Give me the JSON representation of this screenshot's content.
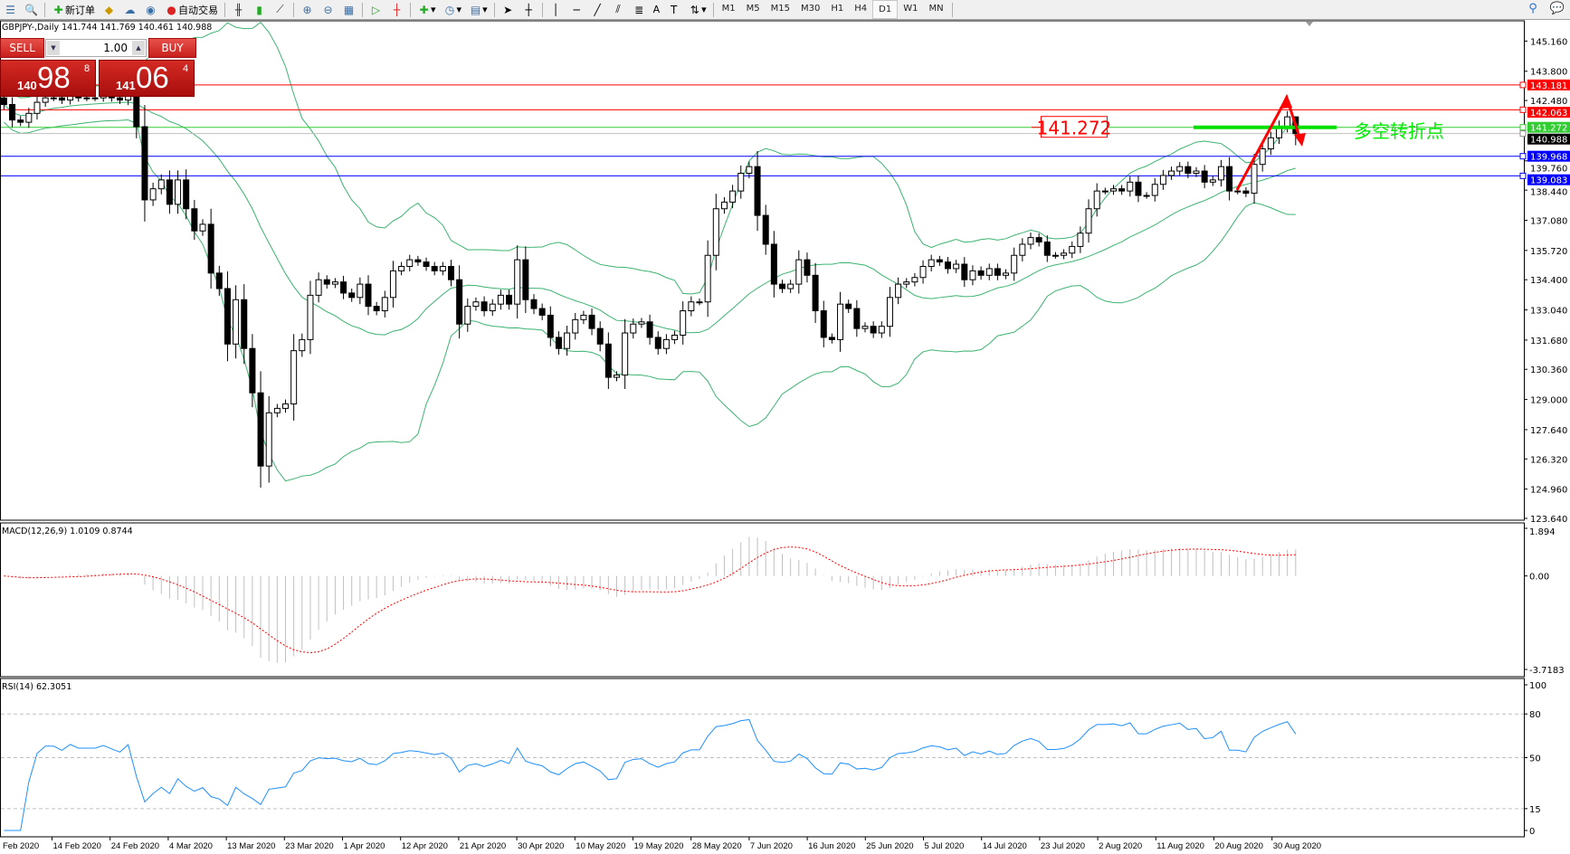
{
  "toolbar": {
    "new_order_label": "新订单",
    "auto_trading_label": "自动交易",
    "timeframes": [
      "M1",
      "M5",
      "M15",
      "M30",
      "H1",
      "H4",
      "D1",
      "W1",
      "MN"
    ],
    "active_timeframe": "D1",
    "text_tool_label": "A"
  },
  "chart": {
    "title": "GBPJPY-,Daily  141.744 141.769 140.461 140.988",
    "symbol": "GBPJPY-",
    "timeframe": "Daily"
  },
  "trade_panel": {
    "sell_label": "SELL",
    "buy_label": "BUY",
    "lot": "1.00",
    "sell_price": {
      "big": "140",
      "main": "98",
      "sup": "8"
    },
    "buy_price": {
      "big": "141",
      "main": "06",
      "sup": "4"
    },
    "color": "#c8201c"
  },
  "price_axis": {
    "ticks": [
      "145.160",
      "143.800",
      "142.480",
      "139.760",
      "138.440",
      "137.080",
      "135.720",
      "134.400",
      "133.040",
      "131.680",
      "130.360",
      "129.000",
      "127.640",
      "126.320",
      "124.960",
      "123.640"
    ],
    "range": [
      123.64,
      145.16
    ]
  },
  "horizontal_lines": [
    {
      "price": 143.181,
      "label": "143.181",
      "color": "#ff0000"
    },
    {
      "price": 142.063,
      "label": "142.063",
      "color": "#ff0000"
    },
    {
      "price": 141.272,
      "label": "141.272",
      "color": "#32cd32"
    },
    {
      "price": 140.988,
      "label": "140.988",
      "color": "#c0c0c0",
      "label_bg": "#000000"
    },
    {
      "price": 139.968,
      "label": "139.968",
      "color": "#0000ff"
    },
    {
      "price": 139.083,
      "label": "139.083",
      "color": "#0000ff"
    }
  ],
  "annotations": {
    "price_box": "141.272",
    "turning_point_text": "多空转折点",
    "turning_point_color": "#00ee00",
    "arrow_color": "#ff0000"
  },
  "dates": [
    "Feb 2020",
    "14 Feb 2020",
    "24 Feb 2020",
    "4 Mar 2020",
    "13 Mar 2020",
    "23 Mar 2020",
    "1 Apr 2020",
    "12 Apr 2020",
    "21 Apr 2020",
    "30 Apr 2020",
    "10 May 2020",
    "19 May 2020",
    "28 May 2020",
    "7 Jun 2020",
    "16 Jun 2020",
    "25 Jun 2020",
    "5 Jul 2020",
    "14 Jul 2020",
    "23 Jul 2020",
    "2 Aug 2020",
    "11 Aug 2020",
    "20 Aug 2020",
    "30 Aug 2020"
  ],
  "macd": {
    "label": "MACD(12,26,9) 1.0109 0.8744",
    "ticks": [
      "1.894",
      "0.00",
      "-3.7183"
    ],
    "range": [
      -3.7183,
      1.894
    ],
    "histogram_color": "#c0c0c0",
    "signal_color": "#ff0000"
  },
  "rsi": {
    "label": "RSI(14) 62.3051",
    "ticks": [
      "100",
      "80",
      "50",
      "15",
      "0"
    ],
    "levels": [
      80,
      50,
      15
    ],
    "color": "#1e90ff"
  },
  "bollinger_color": "#3cb371",
  "chart_data": {
    "type": "candlestick",
    "symbol": "GBPJPY-",
    "timeframe": "Daily",
    "last_bar": {
      "open": 141.744,
      "high": 141.769,
      "low": 140.461,
      "close": 140.988
    },
    "closes": [
      142.3,
      141.6,
      141.5,
      141.9,
      142.4,
      142.6,
      142.6,
      142.5,
      142.7,
      142.6,
      142.6,
      142.6,
      142.7,
      142.6,
      142.5,
      142.8,
      141.3,
      138.0,
      138.5,
      138.9,
      137.8,
      138.9,
      137.6,
      136.6,
      136.9,
      134.7,
      134.0,
      131.5,
      133.5,
      131.3,
      129.3,
      126.0,
      128.4,
      128.6,
      128.8,
      131.2,
      131.7,
      133.7,
      134.4,
      134.2,
      134.3,
      133.8,
      133.6,
      134.2,
      133.2,
      133.0,
      133.6,
      134.8,
      135.0,
      135.3,
      135.2,
      135.0,
      134.8,
      135.0,
      134.4,
      132.4,
      133.2,
      133.4,
      133.0,
      133.3,
      133.7,
      133.3,
      135.3,
      133.5,
      133.1,
      132.8,
      131.8,
      131.3,
      132.0,
      132.6,
      132.8,
      132.2,
      131.5,
      130.0,
      130.1,
      132.0,
      132.4,
      132.5,
      131.8,
      131.3,
      131.7,
      131.9,
      133.0,
      133.4,
      133.4,
      135.5,
      137.6,
      137.9,
      138.4,
      139.2,
      139.5,
      137.3,
      136.0,
      134.2,
      134.0,
      134.2,
      135.3,
      134.6,
      133.0,
      131.8,
      131.7,
      133.3,
      133.1,
      132.2,
      132.3,
      132.0,
      132.3,
      133.6,
      134.2,
      134.3,
      134.5,
      135.0,
      135.3,
      135.2,
      134.9,
      135.1,
      134.4,
      134.8,
      134.6,
      134.9,
      134.6,
      134.7,
      135.5,
      136.0,
      136.3,
      136.1,
      135.5,
      135.5,
      135.6,
      135.9,
      136.5,
      137.6,
      138.4,
      138.4,
      138.5,
      138.4,
      138.8,
      138.2,
      138.2,
      138.7,
      139.1,
      139.3,
      139.5,
      139.2,
      139.3,
      138.8,
      138.9,
      139.5,
      138.4,
      138.4,
      138.3,
      139.6,
      140.3,
      140.8,
      141.3,
      141.744,
      140.988
    ],
    "indicators": [
      "Bollinger Bands (20,2)",
      "MACD(12,26,9)",
      "RSI(14)"
    ]
  }
}
